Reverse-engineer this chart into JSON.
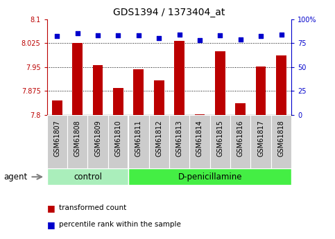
{
  "title": "GDS1394 / 1373404_at",
  "samples": [
    "GSM61807",
    "GSM61808",
    "GSM61809",
    "GSM61810",
    "GSM61811",
    "GSM61812",
    "GSM61813",
    "GSM61814",
    "GSM61815",
    "GSM61816",
    "GSM61817",
    "GSM61818"
  ],
  "transformed_count": [
    7.845,
    8.025,
    7.956,
    7.883,
    7.943,
    7.908,
    8.032,
    7.802,
    8.0,
    7.836,
    7.952,
    7.987
  ],
  "percentile_rank": [
    82,
    85,
    83,
    83,
    83,
    80,
    84,
    78,
    83,
    79,
    82,
    84
  ],
  "ylim_left": [
    7.8,
    8.1
  ],
  "ylim_right": [
    0,
    100
  ],
  "yticks_left": [
    7.8,
    7.875,
    7.95,
    8.025,
    8.1
  ],
  "yticks_right": [
    0,
    25,
    50,
    75,
    100
  ],
  "ytick_labels_left": [
    "7.8",
    "7.875",
    "7.95",
    "8.025",
    "8.1"
  ],
  "ytick_labels_right": [
    "0",
    "25",
    "50",
    "75",
    "100%"
  ],
  "hlines": [
    7.875,
    7.95,
    8.025
  ],
  "bar_color": "#bb0000",
  "dot_color": "#0000cc",
  "bar_bottom": 7.8,
  "n_control": 4,
  "n_treatment": 8,
  "control_label": "control",
  "treatment_label": "D-penicillamine",
  "agent_label": "agent",
  "legend_bar_label": "transformed count",
  "legend_dot_label": "percentile rank within the sample",
  "tick_bg_color": "#cccccc",
  "control_bg": "#aaeebb",
  "treatment_bg": "#44ee44",
  "title_fontsize": 10,
  "tick_fontsize": 7,
  "label_fontsize": 8.5,
  "legend_fontsize": 7.5
}
